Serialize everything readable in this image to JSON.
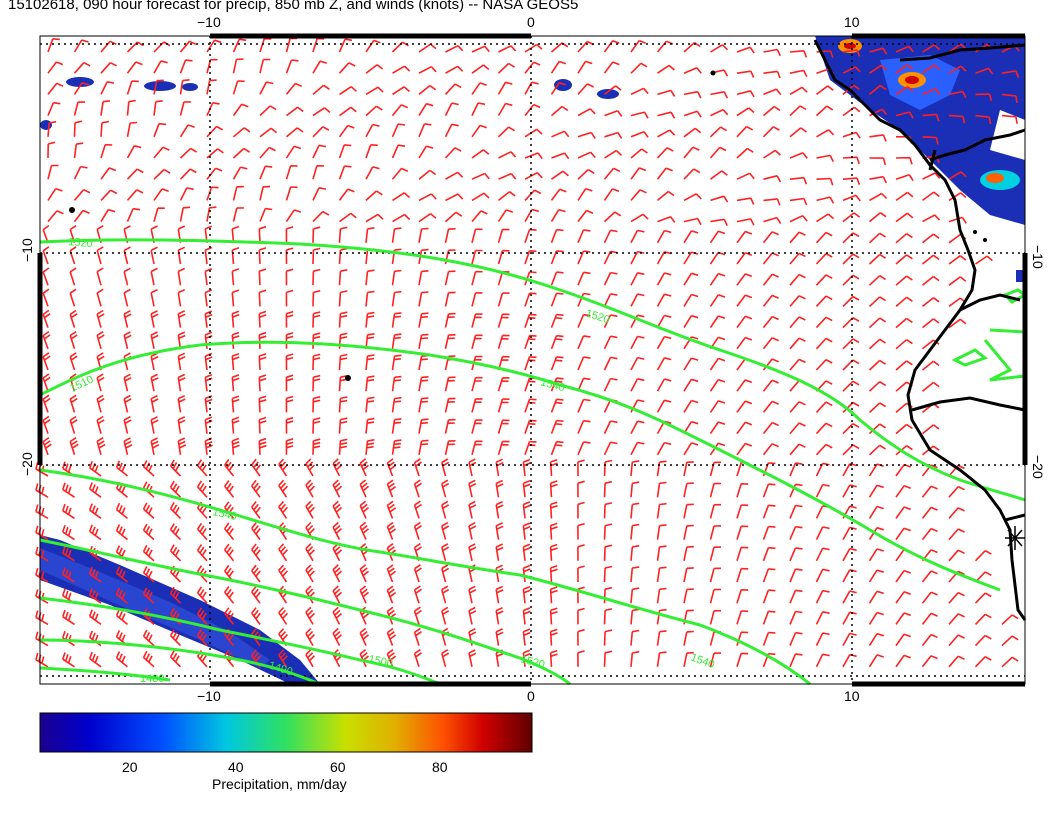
{
  "title": "15102618, 090 hour forecast for precip, 850 mb Z, and winds (knots) -- NASA GEOS5",
  "axes": {
    "x_ticks_top": [
      "−10",
      "0",
      "10"
    ],
    "x_ticks_bottom": [
      "−10",
      "0",
      "10"
    ],
    "y_ticks_left": [
      "−10",
      "−20"
    ],
    "y_ticks_right": [
      "−10",
      "−20"
    ]
  },
  "contours": {
    "color": "#33ee33",
    "labels": [
      "1520",
      "1510",
      "1520",
      "1540",
      "1540",
      "1500",
      "1520",
      "1540",
      "1480",
      "1490"
    ]
  },
  "winds": {
    "color": "#ff2020"
  },
  "coastline": {
    "color": "#000000"
  },
  "colorbar": {
    "ticks": [
      "20",
      "40",
      "60",
      "80"
    ],
    "label": "Precipitation, mm/day",
    "colors": [
      "#1a0099",
      "#0000dd",
      "#0070ff",
      "#00d0e0",
      "#30e060",
      "#b0e000",
      "#e0c000",
      "#ff6000",
      "#d00000",
      "#700000"
    ]
  }
}
